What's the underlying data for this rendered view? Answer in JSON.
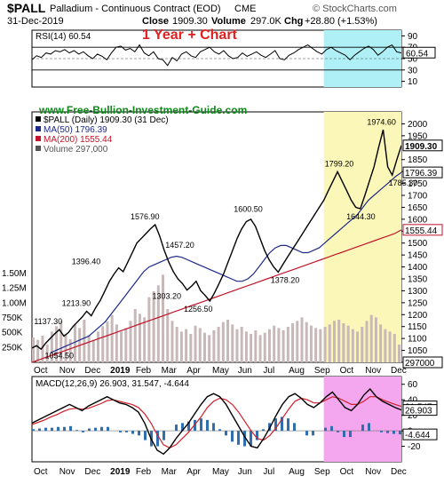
{
  "header": {
    "symbol": "$PALL",
    "description": "Palladium - Continuous Contract (EOD)",
    "exchange": "CME",
    "date": "31-Dec-2019",
    "close_label": "Close",
    "close_value": "1909.30",
    "volume_label": "Volume",
    "volume_value": "297.0K",
    "chg_label": "Chg",
    "chg_value": "+28.80 (+1.53%)",
    "copyright": "© StockCharts.com"
  },
  "overlay_title": "1 Year + Chart",
  "watermark": "www.Free-Bullion-Investment-Guide.com",
  "colors": {
    "price": "#000000",
    "ma50": "#1e2a8a",
    "ma200": "#c0152a",
    "volume": "#c8b8b8",
    "highlight_cyan": "#aef0f5",
    "highlight_yellow": "#fbf7b8",
    "highlight_magenta": "#f4a6ef",
    "overlay_title": "#e02020",
    "watermark": "#0c8a18"
  },
  "chart_data": [
    {
      "type": "line",
      "panel": "rsi",
      "legend": "RSI(14) 60.54",
      "right_ticks": [
        90,
        70,
        50,
        30,
        10
      ],
      "current_value_tag": "60.54",
      "ylim": [
        0,
        100
      ],
      "reference_lines": [
        70,
        30
      ],
      "series": [
        {
          "name": "RSI(14)",
          "values": [
            48,
            55,
            52,
            60,
            58,
            64,
            62,
            66,
            60,
            64,
            58,
            62,
            55,
            50,
            58,
            54,
            48,
            60,
            70,
            72,
            65,
            68,
            62,
            74,
            60,
            55,
            62,
            50,
            48,
            38,
            52,
            46,
            58,
            62,
            55,
            52,
            62,
            66,
            70,
            62,
            58,
            64,
            55,
            50,
            52,
            60,
            54,
            58,
            62,
            56,
            52,
            58,
            64,
            50,
            48,
            56,
            60,
            66,
            70,
            74,
            68,
            62,
            58,
            66,
            70,
            64,
            60,
            56,
            48,
            56,
            62,
            68,
            72,
            66,
            56,
            62,
            70,
            74,
            62,
            60
          ]
        }
      ]
    },
    {
      "type": "line",
      "panel": "price",
      "legend": [
        "$PALL (Daily) 1909.30 (31 Dec)",
        "MA(50) 1796.39",
        "MA(200) 1555.44",
        "Volume 297,000"
      ],
      "right_ticks": [
        2000,
        1950,
        1850,
        1800,
        1750,
        1700,
        1650,
        1600,
        1550,
        1500,
        1450,
        1400,
        1350,
        1300,
        1250,
        1200,
        1150,
        1100,
        1050,
        1000
      ],
      "value_tags": [
        "1909.30",
        "1796.39",
        "1555.44",
        "297000"
      ],
      "left_volume_ticks": [
        "1.50M",
        "1.25M",
        "1.00M",
        "750K",
        "500K",
        "250K"
      ],
      "ylim": [
        1000,
        2050
      ],
      "x_labels": [
        "Oct",
        "Nov",
        "Dec",
        "2019",
        "Feb",
        "Mar",
        "Apr",
        "May",
        "Jun",
        "Jul",
        "Aug",
        "Sep",
        "Oct",
        "Nov",
        "Dec"
      ],
      "annotations": [
        "1137.30",
        "1054.50",
        "1213.90",
        "1396.40",
        "1576.90",
        "1457.20",
        "1303.20",
        "1256.50",
        "1600.50",
        "1378.20",
        "1799.20",
        "1644.30",
        "1974.60",
        "1785.30"
      ],
      "series": [
        {
          "name": "$PALL (Daily)",
          "values": [
            1060,
            1070,
            1055,
            1080,
            1100,
            1120,
            1137,
            1110,
            1125,
            1150,
            1170,
            1190,
            1214,
            1195,
            1230,
            1260,
            1300,
            1340,
            1370,
            1396,
            1380,
            1420,
            1460,
            1500,
            1520,
            1540,
            1560,
            1577,
            1530,
            1470,
            1420,
            1380,
            1350,
            1330,
            1303,
            1320,
            1340,
            1300,
            1280,
            1257,
            1290,
            1330,
            1370,
            1420,
            1470,
            1520,
            1560,
            1590,
            1600,
            1570,
            1520,
            1470,
            1430,
            1400,
            1378,
            1410,
            1440,
            1470,
            1500,
            1530,
            1560,
            1590,
            1620,
            1650,
            1680,
            1720,
            1760,
            1799,
            1760,
            1720,
            1680,
            1650,
            1644,
            1700,
            1760,
            1820,
            1900,
            1975,
            1820,
            1785,
            1850,
            1909
          ]
        },
        {
          "name": "MA(50)",
          "values": [
            1040,
            1050,
            1060,
            1070,
            1080,
            1090,
            1100,
            1110,
            1130,
            1150,
            1170,
            1200,
            1230,
            1260,
            1290,
            1320,
            1350,
            1380,
            1400,
            1410,
            1420,
            1430,
            1440,
            1445,
            1440,
            1430,
            1420,
            1410,
            1400,
            1390,
            1380,
            1370,
            1360,
            1350,
            1340,
            1340,
            1350,
            1370,
            1400,
            1430,
            1460,
            1480,
            1490,
            1490,
            1480,
            1470,
            1460,
            1460,
            1470,
            1480,
            1500,
            1520,
            1540,
            1560,
            1580,
            1600,
            1620,
            1650,
            1680,
            1700,
            1720,
            1740,
            1760,
            1780,
            1796
          ]
        },
        {
          "name": "MA(200)",
          "values": [
            1000,
            1010,
            1020,
            1030,
            1040,
            1050,
            1060,
            1070,
            1080,
            1090,
            1100,
            1110,
            1120,
            1130,
            1140,
            1150,
            1160,
            1170,
            1180,
            1190,
            1200,
            1210,
            1220,
            1230,
            1240,
            1250,
            1260,
            1270,
            1280,
            1290,
            1300,
            1310,
            1320,
            1330,
            1340,
            1350,
            1360,
            1370,
            1380,
            1390,
            1400,
            1410,
            1420,
            1430,
            1440,
            1450,
            1460,
            1470,
            1480,
            1490,
            1500,
            1510,
            1520,
            1530,
            1540,
            1555
          ]
        },
        {
          "name": "Volume",
          "values": [
            420,
            380,
            450,
            300,
            520,
            610,
            700,
            480,
            390,
            650,
            580,
            720,
            460,
            380,
            520,
            610,
            690,
            800,
            640,
            520,
            580,
            700,
            900,
            820,
            760,
            1100,
            1200,
            1300,
            1480,
            900,
            700,
            600,
            520,
            560,
            480,
            620,
            580,
            500,
            460,
            540,
            600,
            680,
            720,
            640,
            560,
            600,
            520,
            480,
            540,
            460,
            500,
            560,
            620,
            580,
            540,
            600,
            660,
            700,
            760,
            680,
            620,
            580,
            560,
            600,
            640,
            700,
            720,
            660,
            620,
            560,
            520,
            600,
            700,
            800,
            760,
            640,
            560,
            520,
            480,
            300
          ]
        }
      ]
    },
    {
      "type": "line",
      "panel": "macd",
      "legend": "MACD(12,26,9) 26.903, 31.547, -4.644",
      "right_ticks": [
        60,
        40,
        20,
        0,
        -20
      ],
      "value_tags": [
        "31.547",
        "26.903",
        "-4.644"
      ],
      "ylim": [
        -40,
        70
      ],
      "x_labels": [
        "Oct",
        "Nov",
        "Dec",
        "2019",
        "Feb",
        "Mar",
        "Apr",
        "May",
        "Jun",
        "Jul",
        "Aug",
        "Sep",
        "Oct",
        "Nov",
        "Dec"
      ],
      "series": [
        {
          "name": "MACD",
          "values": [
            10,
            14,
            18,
            22,
            26,
            30,
            34,
            30,
            26,
            32,
            36,
            40,
            44,
            40,
            36,
            34,
            30,
            24,
            10,
            -10,
            -25,
            -30,
            -22,
            -10,
            0,
            10,
            22,
            34,
            44,
            48,
            44,
            34,
            20,
            6,
            -8,
            -20,
            -22,
            -10,
            4,
            20,
            34,
            44,
            48,
            42,
            34,
            30,
            36,
            44,
            50,
            40,
            30,
            26,
            34,
            46,
            54,
            44,
            38,
            34,
            30,
            26.9
          ]
        },
        {
          "name": "Signal",
          "values": [
            8,
            11,
            14,
            18,
            21,
            25,
            28,
            29,
            28,
            29,
            32,
            35,
            39,
            40,
            38,
            36,
            34,
            30,
            22,
            10,
            -5,
            -18,
            -22,
            -18,
            -10,
            -2,
            8,
            18,
            30,
            38,
            42,
            40,
            34,
            24,
            12,
            0,
            -10,
            -12,
            -6,
            4,
            16,
            28,
            38,
            42,
            40,
            36,
            36,
            40,
            44,
            42,
            38,
            34,
            34,
            38,
            44,
            44,
            40,
            37,
            34,
            31.5
          ]
        },
        {
          "name": "Histogram",
          "values": [
            2,
            3,
            4,
            4,
            5,
            5,
            6,
            1,
            -2,
            3,
            4,
            5,
            5,
            0,
            -2,
            -2,
            -4,
            -6,
            -12,
            -20,
            -20,
            -12,
            0,
            8,
            10,
            12,
            14,
            16,
            14,
            10,
            2,
            -6,
            -14,
            -18,
            -20,
            -20,
            -12,
            2,
            10,
            16,
            18,
            16,
            10,
            0,
            -6,
            -6,
            0,
            4,
            6,
            -2,
            -8,
            -8,
            0,
            8,
            10,
            0,
            -2,
            -3,
            -4,
            -4.6
          ]
        }
      ]
    }
  ]
}
